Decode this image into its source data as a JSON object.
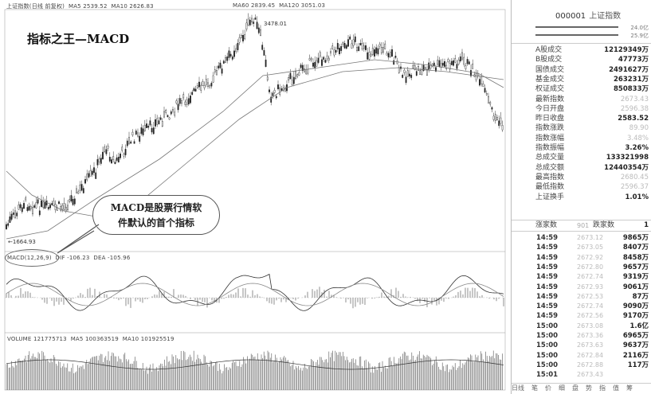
{
  "header": {
    "index_name": "上证指数(日线 前复权)",
    "ma5": "MA5 2539.52",
    "ma10": "MA10 2626.83",
    "ma60": "MA60 2839.45",
    "ma120": "MA120 3051.03"
  },
  "chart_title": "指标之王—MACD",
  "callout": {
    "line1": "MACD是股票行情软",
    "line2": "件默认的首个指标"
  },
  "price_labels": {
    "high": "3478.01",
    "low": "←1664.93"
  },
  "macd_header": {
    "macd": "MACD(12,26,9)",
    "dif": "DIF -106.23",
    "dea": "DEA -105.96"
  },
  "volume_header": {
    "volume": "VOLUME 121775713",
    "ma5": "MA5 100363519",
    "ma10": "MA10 101925519"
  },
  "panel": {
    "code": "000001",
    "name": "上证指数",
    "top_values": [
      "24.0亿",
      "25.9亿"
    ],
    "rows": [
      {
        "label": "A股成交",
        "value": "12129349万",
        "faint": false
      },
      {
        "label": "B股成交",
        "value": "47773万",
        "faint": false
      },
      {
        "label": "国债成交",
        "value": "2491627万",
        "faint": false
      },
      {
        "label": "基金成交",
        "value": "263231万",
        "faint": false
      },
      {
        "label": "权证成交",
        "value": "850833万",
        "faint": false
      },
      {
        "label": "最新指数",
        "value": "2673.43",
        "faint": true
      },
      {
        "label": "今日开盘",
        "value": "2596.38",
        "faint": true
      },
      {
        "label": "昨日收盘",
        "value": "2583.52",
        "faint": false
      },
      {
        "label": "指数涨跌",
        "value": "89.90",
        "faint": true
      },
      {
        "label": "指数涨幅",
        "value": "3.48%",
        "faint": true
      },
      {
        "label": "指数振幅",
        "value": "3.26%",
        "faint": false
      },
      {
        "label": "总成交量",
        "value": "133321998",
        "faint": false
      },
      {
        "label": "总成交额",
        "value": "12440354万",
        "faint": false
      },
      {
        "label": "最高指数",
        "value": "2680.45",
        "faint": true
      },
      {
        "label": "最低指数",
        "value": "2596.37",
        "faint": true
      },
      {
        "label": "上证换手",
        "value": "1.01%",
        "faint": false
      }
    ],
    "updown": {
      "label1": "涨家数",
      "value1": "901",
      "label2": "跌家数",
      "value2": "1"
    },
    "trades": [
      {
        "time": "14:59",
        "price": "2673.12",
        "volume": "9865万"
      },
      {
        "time": "14:59",
        "price": "2673.05",
        "volume": "8407万"
      },
      {
        "time": "14:59",
        "price": "2672.92",
        "volume": "8458万"
      },
      {
        "time": "14:59",
        "price": "2672.80",
        "volume": "9657万"
      },
      {
        "time": "14:59",
        "price": "2672.74",
        "volume": "9319万"
      },
      {
        "time": "14:59",
        "price": "2672.93",
        "volume": "9061万"
      },
      {
        "time": "14:59",
        "price": "2672.53",
        "volume": "87万"
      },
      {
        "time": "14:59",
        "price": "2672.74",
        "volume": "9090万"
      },
      {
        "time": "14:59",
        "price": "2672.56",
        "volume": "9170万"
      },
      {
        "time": "15:00",
        "price": "2673.08",
        "volume": "1.6亿"
      },
      {
        "time": "15:00",
        "price": "2673.36",
        "volume": "6965万"
      },
      {
        "time": "15:00",
        "price": "2673.63",
        "volume": "9637万"
      },
      {
        "time": "15:00",
        "price": "2672.84",
        "volume": "2116万"
      },
      {
        "time": "15:00",
        "price": "2672.88",
        "volume": "117万"
      },
      {
        "time": "15:01",
        "price": "2673.43",
        "volume": ""
      }
    ],
    "tabs": [
      "日线",
      "笔",
      "价",
      "细",
      "盘",
      "势",
      "指",
      "值",
      "筹"
    ]
  }
}
